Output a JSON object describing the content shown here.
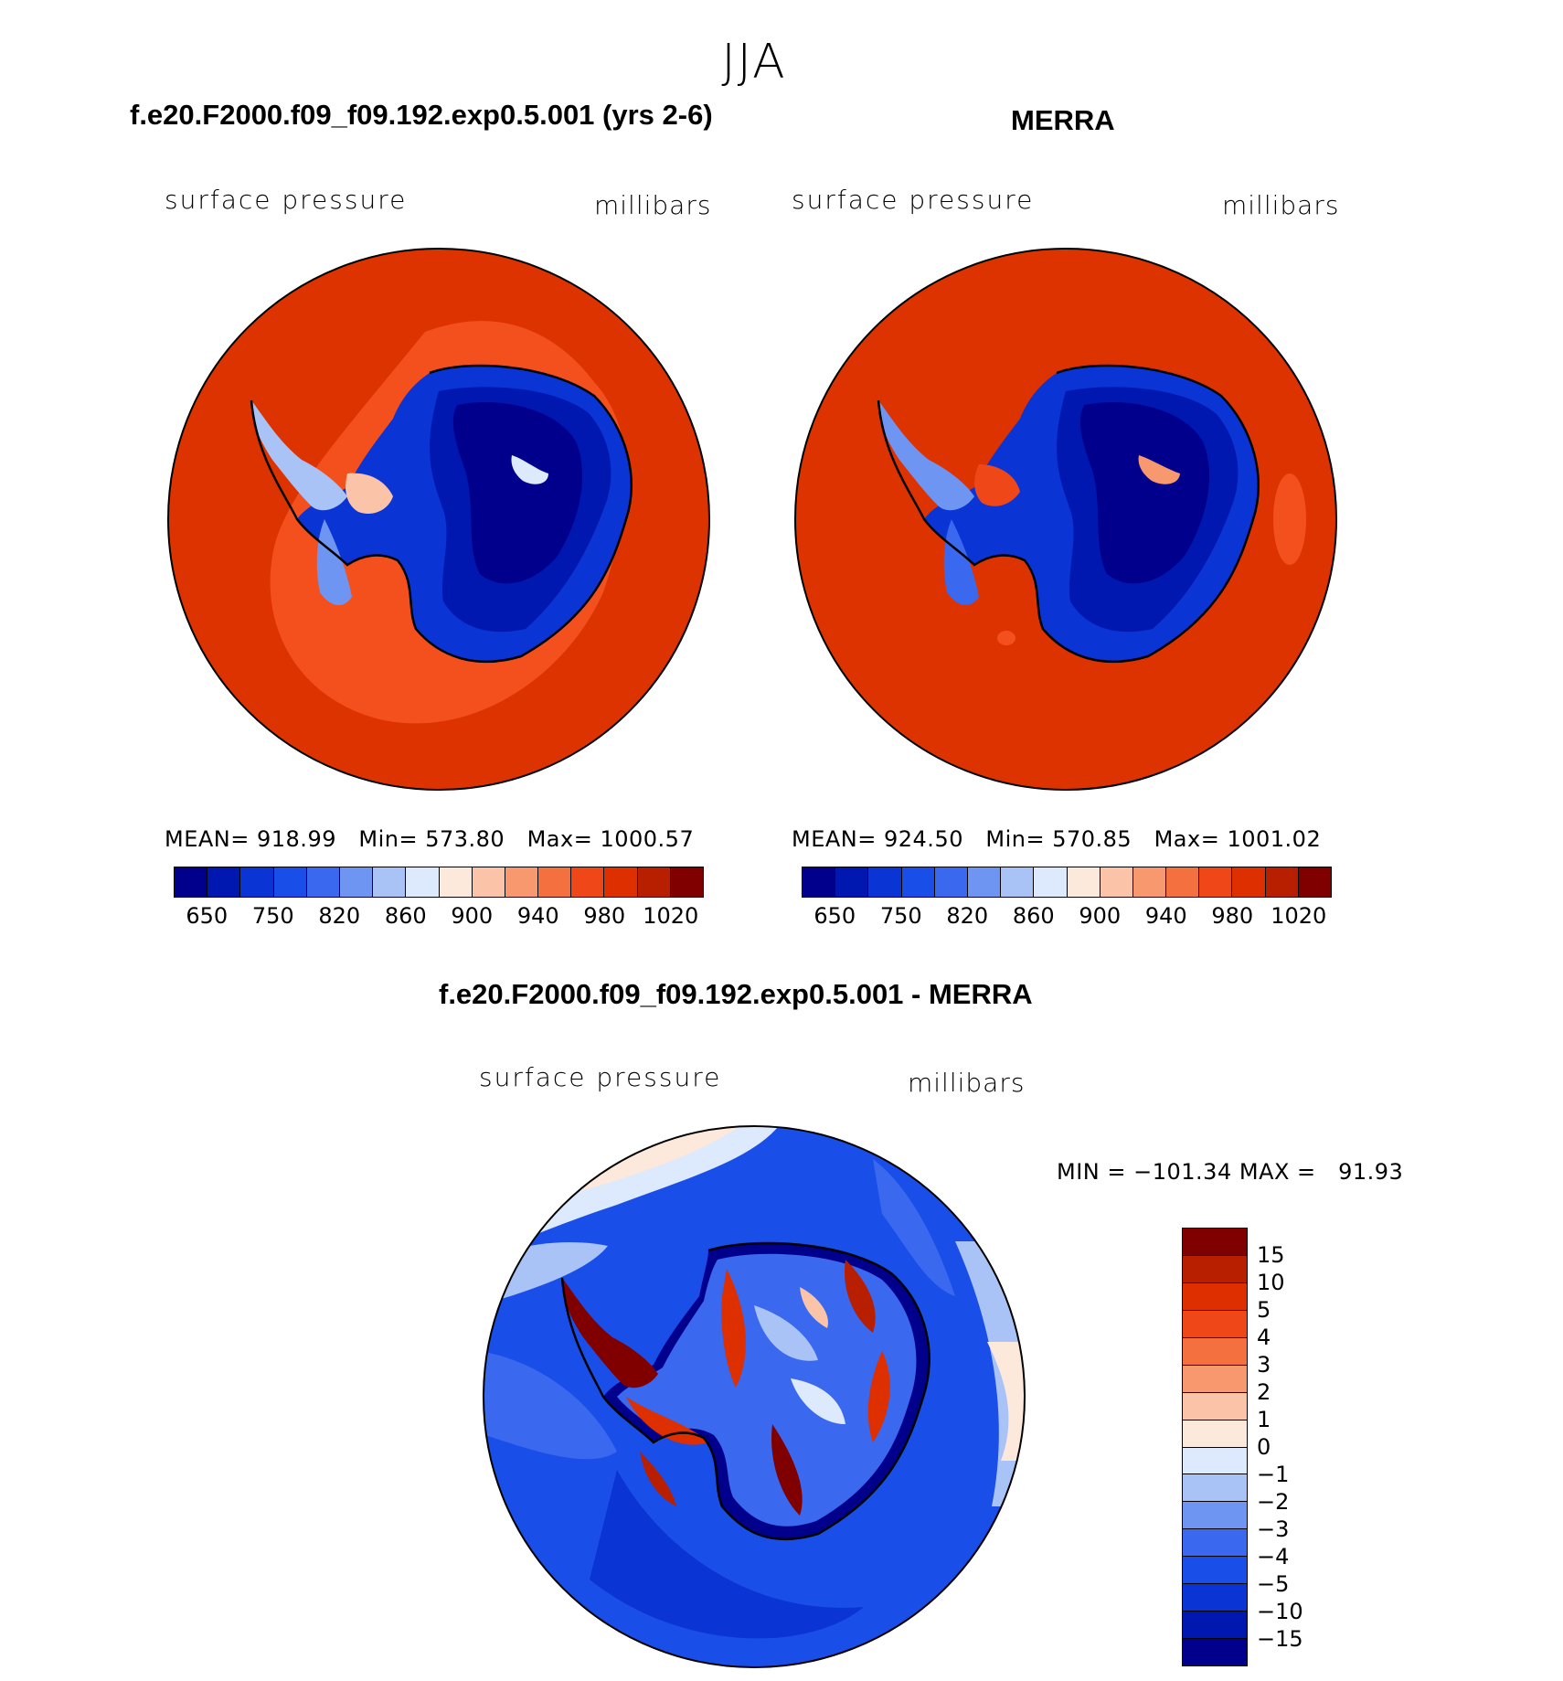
{
  "figure": {
    "season": "JJA"
  },
  "panels": {
    "model": {
      "title": "f.e20.F2000.f09_f09.192.exp0.5.001 (yrs 2-6)",
      "variable": "surface pressure",
      "units": "millibars",
      "stats": {
        "mean_label": "MEAN=",
        "mean": "918.99",
        "min_label": "Min=",
        "min": "573.80",
        "max_label": "Max=",
        "max": "1000.57"
      }
    },
    "obs": {
      "title": "MERRA",
      "variable": "surface pressure",
      "units": "millibars",
      "stats": {
        "mean_label": "MEAN=",
        "mean": "924.50",
        "min_label": "Min=",
        "min": "570.85",
        "max_label": "Max=",
        "max": "1001.02"
      }
    },
    "diff": {
      "title": "f.e20.F2000.f09_f09.192.exp0.5.001 - MERRA",
      "variable": "surface pressure",
      "units": "millibars",
      "stats": {
        "min_label": "MIN =",
        "min": "−101.34",
        "max_label": "MAX =",
        "max": "91.93"
      }
    }
  },
  "colorbars": {
    "abs": {
      "colors": [
        "#00008c",
        "#0018b0",
        "#0a34d4",
        "#1a4ee8",
        "#3a68ee",
        "#6f95f2",
        "#a9c3f7",
        "#dde9fc",
        "#fde9dc",
        "#fbc3a8",
        "#f8986f",
        "#f4703f",
        "#ef4718",
        "#dd2f00",
        "#b81f00",
        "#800000"
      ],
      "tick_labels": [
        "650",
        "750",
        "820",
        "860",
        "900",
        "940",
        "980",
        "1020"
      ]
    },
    "diff": {
      "colors": [
        "#00008c",
        "#0018b0",
        "#0a34d4",
        "#1a4ee8",
        "#3a68ee",
        "#6f95f2",
        "#a9c3f7",
        "#dde9fc",
        "#fde9dc",
        "#fbc3a8",
        "#f8986f",
        "#f4703f",
        "#ef4718",
        "#dd2f00",
        "#b81f00",
        "#800000"
      ],
      "tick_labels": [
        "15",
        "10",
        "5",
        "4",
        "3",
        "2",
        "1",
        "0",
        "−1",
        "−2",
        "−3",
        "−4",
        "−5",
        "−10",
        "−15"
      ]
    }
  }
}
